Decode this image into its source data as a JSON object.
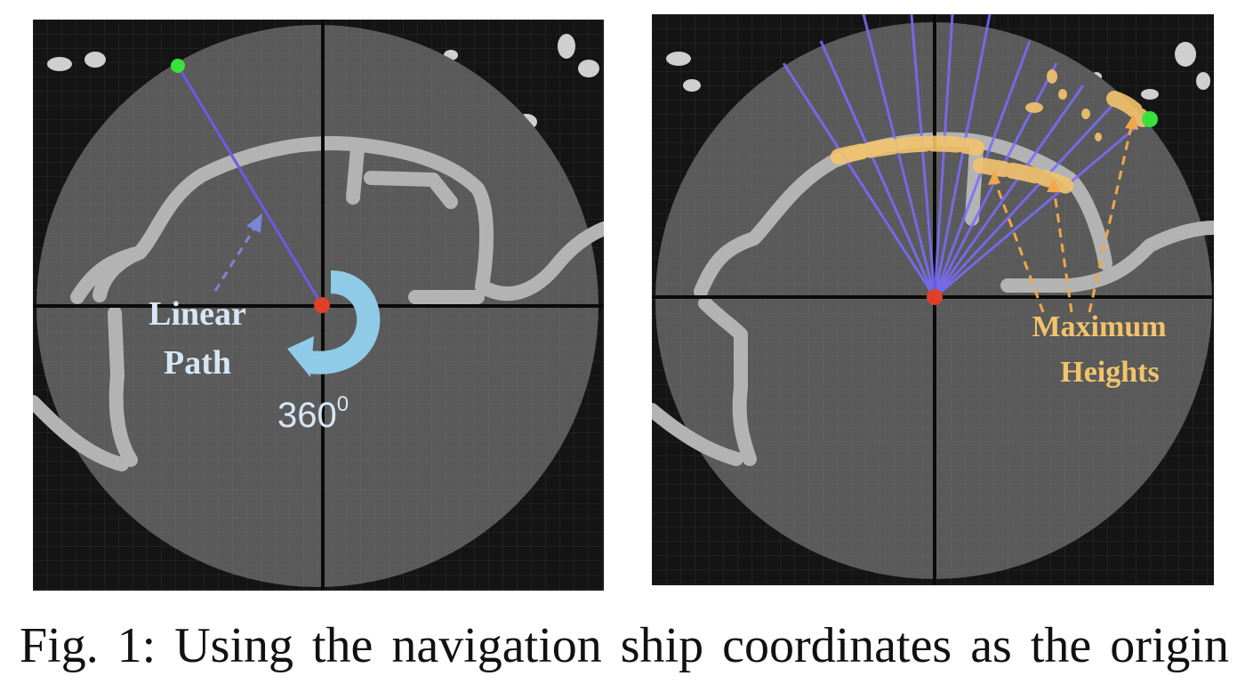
{
  "left_panel": {
    "label_line1": "Linear",
    "label_line2": "Path",
    "rotation_value": "360",
    "rotation_sup": "0",
    "colors": {
      "ray": "#6a5ce8",
      "origin": "#e0402a",
      "target": "#39e23a",
      "arrow": "#8fcbe6",
      "label": "#d6e6f3"
    }
  },
  "right_panel": {
    "label_line1": "Maximum",
    "label_line2": "Heights",
    "colors": {
      "ray": "#7a6cff",
      "highlight": "#f3c46b",
      "label": "#f2c36a"
    }
  },
  "caption": "Fig. 1: Using the navigation ship coordinates as the origin"
}
